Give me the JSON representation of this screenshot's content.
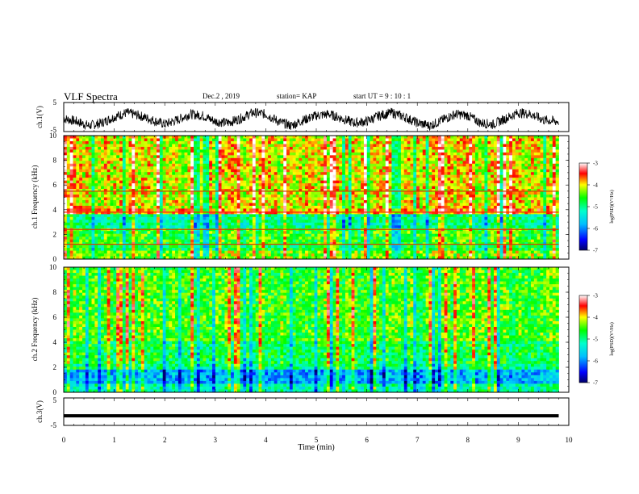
{
  "header": {
    "title": "VLF Spectra",
    "date": "Dec.2 , 2019",
    "station": "station= KAP",
    "start_ut": "start  UT =   9 : 10 : 1"
  },
  "chart_data": [
    {
      "type": "line",
      "panel": "ch1-waveform",
      "ylabel": "ch.1(V)",
      "ylim": [
        -5,
        5
      ],
      "yticks": [
        "5",
        "-5"
      ],
      "xlim": [
        0,
        10
      ],
      "series": [
        {
          "x": [
            0,
            0.25,
            0.5,
            0.75,
            1,
            1.25,
            1.5,
            1.75,
            2,
            2.25,
            2.5,
            2.75,
            3,
            3.25,
            3.5,
            3.75,
            4,
            4.25,
            4.5,
            4.75,
            5,
            5.25,
            5.5,
            5.75,
            6,
            6.25,
            6.5,
            6.75,
            7,
            7.25,
            7.5,
            7.75,
            8,
            8.25,
            8.5,
            8.75,
            9,
            9.25,
            9.5,
            9.75
          ],
          "y": [
            -0.5,
            -1.5,
            -3,
            -2,
            0,
            1.5,
            0.5,
            -1,
            -2.5,
            -1,
            1,
            0.5,
            -1.5,
            -2,
            -0.5,
            1.5,
            1,
            -1.5,
            -3,
            -1,
            0.5,
            1,
            -0.5,
            -2,
            -1.5,
            0.5,
            1.5,
            0,
            -2,
            -3,
            -1,
            1,
            0.5,
            -2,
            -2.5,
            -0.5,
            1.5,
            1,
            -1,
            -1.5
          ]
        }
      ]
    },
    {
      "type": "heatmap",
      "panel": "ch1-spectrogram",
      "ylabel": "ch.1 Frequency (kHz)",
      "ylim": [
        0,
        10
      ],
      "yticks": [
        "0",
        "2",
        "4",
        "6",
        "8",
        "10"
      ],
      "xlim": [
        0,
        10
      ],
      "colorbar": {
        "label": "log(PSD)(V²/Hz)",
        "range": [
          -7,
          -3
        ],
        "ticks": [
          "-3",
          "-4",
          "-5",
          "-6",
          "-7"
        ]
      }
    },
    {
      "type": "heatmap",
      "panel": "ch2-spectrogram",
      "ylabel": "ch.2 Frequency (kHz)",
      "ylim": [
        0,
        10
      ],
      "yticks": [
        "0",
        "2",
        "4",
        "6",
        "8",
        "10"
      ],
      "xlim": [
        0,
        10
      ],
      "colorbar": {
        "label": "log(PSD)(V²/Hz)",
        "range": [
          -7,
          -3
        ],
        "ticks": [
          "-3",
          "-4",
          "-5",
          "-6",
          "-7"
        ]
      }
    },
    {
      "type": "line",
      "panel": "ch3-waveform",
      "ylabel": "ch.3(V)",
      "ylim": [
        -5,
        5
      ],
      "yticks": [
        "5",
        "-5"
      ],
      "xlabel": "Time (min)",
      "xlim": [
        0,
        10
      ],
      "xticks": [
        "0",
        "1",
        "2",
        "3",
        "4",
        "5",
        "6",
        "7",
        "8",
        "9",
        "10"
      ],
      "series": [
        {
          "x": [
            0,
            9.8
          ],
          "y": [
            -1.5,
            -1.5
          ]
        }
      ]
    }
  ],
  "colors": {
    "frame": "#000000",
    "trace": "#000000",
    "background": "#ffffff"
  }
}
